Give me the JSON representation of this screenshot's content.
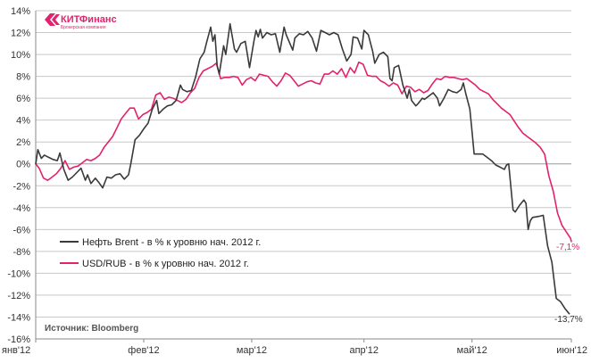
{
  "logo": {
    "brand": "КИТФинанс",
    "tagline": "Брокерская компания",
    "color": "#e2226c"
  },
  "source": "Источник: Bloomberg",
  "chart_data": {
    "type": "line",
    "title": "",
    "xlabel": "",
    "ylabel": "",
    "ylim": [
      -16,
      14
    ],
    "y_ticks": [
      -16,
      -14,
      -12,
      -10,
      -8,
      -6,
      -4,
      -2,
      0,
      2,
      4,
      6,
      8,
      10,
      12,
      14
    ],
    "y_tick_labels": [
      "-16%",
      "-14%",
      "-12%",
      "-10%",
      "-8%",
      "-6%",
      "-4%",
      "-2%",
      "0%",
      "2%",
      "4%",
      "6%",
      "8%",
      "10%",
      "12%",
      "14%"
    ],
    "x_range": [
      0,
      124
    ],
    "x_ticks": [
      {
        "x": 0,
        "label": "янв'12"
      },
      {
        "x": 25,
        "label": "фев'12"
      },
      {
        "x": 50,
        "label": "мар'12"
      },
      {
        "x": 76,
        "label": "апр'12"
      },
      {
        "x": 101,
        "label": "май'12"
      },
      {
        "x": 124,
        "label": "июн'12"
      }
    ],
    "grid": "horizontal",
    "legend_position": "lower-left",
    "series": [
      {
        "name": "Нефть Brent - в % к уровню нач. 2012 г.",
        "color": "#3a3a3a",
        "end_label": "-13,7%",
        "points": [
          [
            0,
            0.0
          ],
          [
            0.5,
            1.3
          ],
          [
            1.3,
            0.5
          ],
          [
            2,
            0.8
          ],
          [
            3,
            0.6
          ],
          [
            4,
            0.4
          ],
          [
            5,
            0.3
          ],
          [
            5.6,
            1.0
          ],
          [
            6.5,
            -0.5
          ],
          [
            7.5,
            -1.5
          ],
          [
            8.5,
            -1.2
          ],
          [
            9.5,
            -0.8
          ],
          [
            10.5,
            -0.4
          ],
          [
            11.5,
            -1.5
          ],
          [
            12,
            -1.0
          ],
          [
            12.8,
            -1.8
          ],
          [
            13.8,
            -1.3
          ],
          [
            14.8,
            -1.8
          ],
          [
            15.5,
            -2.2
          ],
          [
            16.5,
            -1.2
          ],
          [
            17.5,
            -1.3
          ],
          [
            18.5,
            -1.0
          ],
          [
            19.5,
            -0.9
          ],
          [
            20.5,
            -1.4
          ],
          [
            21.5,
            -1.0
          ],
          [
            22,
            0.0
          ],
          [
            23,
            2.2
          ],
          [
            24,
            2.6
          ],
          [
            25,
            3.2
          ],
          [
            26,
            3.7
          ],
          [
            27,
            5.0
          ],
          [
            28,
            5.8
          ],
          [
            28.5,
            4.6
          ],
          [
            29.5,
            5.0
          ],
          [
            30.5,
            5.3
          ],
          [
            31.5,
            5.4
          ],
          [
            32.5,
            5.8
          ],
          [
            33.5,
            7.2
          ],
          [
            34,
            6.8
          ],
          [
            35,
            6.6
          ],
          [
            36,
            6.7
          ],
          [
            37,
            7.9
          ],
          [
            38,
            9.6
          ],
          [
            39,
            10.2
          ],
          [
            39.5,
            11.0
          ],
          [
            40.5,
            12.5
          ],
          [
            41,
            11.2
          ],
          [
            41.5,
            11.8
          ],
          [
            42,
            9.0
          ],
          [
            42.5,
            8.2
          ],
          [
            43.5,
            10.8
          ],
          [
            44,
            10.0
          ],
          [
            45,
            12.8
          ],
          [
            46,
            10.5
          ],
          [
            46.5,
            10.2
          ],
          [
            47.5,
            11.0
          ],
          [
            48.5,
            11.2
          ],
          [
            49.5,
            8.8
          ],
          [
            50.5,
            11.2
          ],
          [
            51,
            12.2
          ],
          [
            51.5,
            11.6
          ],
          [
            52,
            12.3
          ],
          [
            52.5,
            11.5
          ],
          [
            53.5,
            12.0
          ],
          [
            54.5,
            11.8
          ],
          [
            55.5,
            11.9
          ],
          [
            56.5,
            10.2
          ],
          [
            57.5,
            12.5
          ],
          [
            58,
            11.8
          ],
          [
            59.5,
            10.4
          ],
          [
            60,
            11.5
          ],
          [
            61,
            11.9
          ],
          [
            62,
            11.8
          ],
          [
            63,
            12.1
          ],
          [
            64,
            11.5
          ],
          [
            65,
            10.3
          ],
          [
            66,
            12.2
          ],
          [
            67,
            12.0
          ],
          [
            68,
            11.8
          ],
          [
            69,
            12.0
          ],
          [
            70,
            11.8
          ],
          [
            71,
            10.5
          ],
          [
            72,
            9.4
          ],
          [
            73,
            10.0
          ],
          [
            73.5,
            11.6
          ],
          [
            74.5,
            11.5
          ],
          [
            75.5,
            10.5
          ],
          [
            76,
            12.2
          ],
          [
            77,
            11.8
          ],
          [
            78,
            10.3
          ],
          [
            78.5,
            9.2
          ],
          [
            79.5,
            10.0
          ],
          [
            80.5,
            10.2
          ],
          [
            81.5,
            9.8
          ],
          [
            82,
            7.8
          ],
          [
            82.5,
            7.6
          ],
          [
            83,
            8.8
          ],
          [
            84,
            9.0
          ],
          [
            85,
            7.2
          ],
          [
            86,
            6.0
          ],
          [
            86.5,
            6.8
          ],
          [
            87,
            5.8
          ],
          [
            88,
            5.3
          ],
          [
            88.5,
            5.5
          ],
          [
            89.5,
            6.0
          ],
          [
            90,
            5.9
          ],
          [
            91,
            6.2
          ],
          [
            92,
            6.5
          ],
          [
            93,
            6.0
          ],
          [
            93.5,
            5.3
          ],
          [
            94.5,
            6.0
          ],
          [
            95.5,
            6.8
          ],
          [
            96.5,
            6.6
          ],
          [
            97.5,
            6.5
          ],
          [
            98.5,
            6.8
          ],
          [
            99,
            7.4
          ],
          [
            99.5,
            6.5
          ],
          [
            100.5,
            5.0
          ],
          [
            101,
            3.0
          ],
          [
            101.5,
            0.9
          ],
          [
            102.5,
            0.9
          ],
          [
            103.5,
            0.9
          ],
          [
            104.5,
            0.6
          ],
          [
            105.5,
            0.3
          ],
          [
            106.5,
            -0.1
          ],
          [
            107.5,
            -0.3
          ],
          [
            108.5,
            -0.5
          ],
          [
            109,
            -0.1
          ],
          [
            109.5,
            0.0
          ],
          [
            110.5,
            -4.2
          ],
          [
            111,
            -4.4
          ],
          [
            112,
            -3.8
          ],
          [
            113,
            -3.3
          ],
          [
            113.5,
            -3.6
          ],
          [
            114,
            -6.0
          ],
          [
            114.5,
            -5.2
          ],
          [
            115,
            -4.9
          ],
          [
            116.5,
            -4.8
          ],
          [
            117.5,
            -4.7
          ],
          [
            118.5,
            -7.5
          ],
          [
            119.5,
            -9.0
          ],
          [
            120.5,
            -12.3
          ],
          [
            121.5,
            -12.6
          ],
          [
            122.5,
            -13.2
          ],
          [
            123.5,
            -13.7
          ]
        ]
      },
      {
        "name": "USD/RUB - в % к уровню нач. 2012 г.",
        "color": "#e2226c",
        "end_label": "-7,1%",
        "points": [
          [
            0,
            0.0
          ],
          [
            0.8,
            -0.4
          ],
          [
            1.8,
            -1.3
          ],
          [
            2.8,
            -1.5
          ],
          [
            3.8,
            -1.2
          ],
          [
            4.8,
            -0.9
          ],
          [
            5.8,
            -0.4
          ],
          [
            6.8,
            0.3
          ],
          [
            7.8,
            -0.5
          ],
          [
            8.8,
            -0.3
          ],
          [
            9.8,
            -0.2
          ],
          [
            10.8,
            0.1
          ],
          [
            11.8,
            0.4
          ],
          [
            12.8,
            0.3
          ],
          [
            13.8,
            0.5
          ],
          [
            14.8,
            0.8
          ],
          [
            15.8,
            1.5
          ],
          [
            16.8,
            2.0
          ],
          [
            17.8,
            2.5
          ],
          [
            18.8,
            3.3
          ],
          [
            19.8,
            4.1
          ],
          [
            20.8,
            4.6
          ],
          [
            21.8,
            5.1
          ],
          [
            22.8,
            5.1
          ],
          [
            23.8,
            4.1
          ],
          [
            24.8,
            4.5
          ],
          [
            25.8,
            4.7
          ],
          [
            26.8,
            5.0
          ],
          [
            27.8,
            6.3
          ],
          [
            28.8,
            6.5
          ],
          [
            29.8,
            5.9
          ],
          [
            30.8,
            6.1
          ],
          [
            31.8,
            6.0
          ],
          [
            32.8,
            5.8
          ],
          [
            33.8,
            5.6
          ],
          [
            34.8,
            5.9
          ],
          [
            35.8,
            6.5
          ],
          [
            36.8,
            6.9
          ],
          [
            37.8,
            7.9
          ],
          [
            38.8,
            8.5
          ],
          [
            39.8,
            8.7
          ],
          [
            40.8,
            8.9
          ],
          [
            41.8,
            9.2
          ],
          [
            42.8,
            7.8
          ],
          [
            43.8,
            7.9
          ],
          [
            44.8,
            7.9
          ],
          [
            45.8,
            8.0
          ],
          [
            46.8,
            7.9
          ],
          [
            47.8,
            7.2
          ],
          [
            48.8,
            7.7
          ],
          [
            49.8,
            7.9
          ],
          [
            50.8,
            7.6
          ],
          [
            51.8,
            8.2
          ],
          [
            52.8,
            8.1
          ],
          [
            53.8,
            8.0
          ],
          [
            54.8,
            7.5
          ],
          [
            55.8,
            7.1
          ],
          [
            56.8,
            7.6
          ],
          [
            57.8,
            8.3
          ],
          [
            58.8,
            8.1
          ],
          [
            59.8,
            7.6
          ],
          [
            60.8,
            7.1
          ],
          [
            61.8,
            7.3
          ],
          [
            62.8,
            7.5
          ],
          [
            63.8,
            7.6
          ],
          [
            64.8,
            7.4
          ],
          [
            65.8,
            7.3
          ],
          [
            66.8,
            8.2
          ],
          [
            67.8,
            8.2
          ],
          [
            68.8,
            8.5
          ],
          [
            69.8,
            8.2
          ],
          [
            70.8,
            8.7
          ],
          [
            71.8,
            7.9
          ],
          [
            72.8,
            8.8
          ],
          [
            73.8,
            8.3
          ],
          [
            74.8,
            9.3
          ],
          [
            75.8,
            9.1
          ],
          [
            76.8,
            8.1
          ],
          [
            77.8,
            8.0
          ],
          [
            78.8,
            8.0
          ],
          [
            79.8,
            7.6
          ],
          [
            80.8,
            7.4
          ],
          [
            81.8,
            7.1
          ],
          [
            82.8,
            7.4
          ],
          [
            83.8,
            7.2
          ],
          [
            84.8,
            6.4
          ],
          [
            85.8,
            7.1
          ],
          [
            86.8,
            7.0
          ],
          [
            87.8,
            6.6
          ],
          [
            88.8,
            6.8
          ],
          [
            89.8,
            6.5
          ],
          [
            90.8,
            6.7
          ],
          [
            91.8,
            7.3
          ],
          [
            92.8,
            7.8
          ],
          [
            93.8,
            7.7
          ],
          [
            94.8,
            8.0
          ],
          [
            95.8,
            7.9
          ],
          [
            96.8,
            7.9
          ],
          [
            97.8,
            7.8
          ],
          [
            98.8,
            7.7
          ],
          [
            99.8,
            7.8
          ],
          [
            100.8,
            7.5
          ],
          [
            101.8,
            7.2
          ],
          [
            102.8,
            6.8
          ],
          [
            103.8,
            6.6
          ],
          [
            104.8,
            6.4
          ],
          [
            105.8,
            5.9
          ],
          [
            106.8,
            5.5
          ],
          [
            107.8,
            5.1
          ],
          [
            108.8,
            4.8
          ],
          [
            109.8,
            4.5
          ],
          [
            110.8,
            3.9
          ],
          [
            111.8,
            3.3
          ],
          [
            112.8,
            2.8
          ],
          [
            113.8,
            2.5
          ],
          [
            114.8,
            2.2
          ],
          [
            115.8,
            1.9
          ],
          [
            116.8,
            1.5
          ],
          [
            117.8,
            0.9
          ],
          [
            118.8,
            -1.1
          ],
          [
            119.8,
            -2.5
          ],
          [
            120.8,
            -4.5
          ],
          [
            121.8,
            -5.6
          ],
          [
            122.8,
            -6.2
          ],
          [
            123.8,
            -6.8
          ],
          [
            124,
            -7.1
          ]
        ]
      }
    ]
  }
}
